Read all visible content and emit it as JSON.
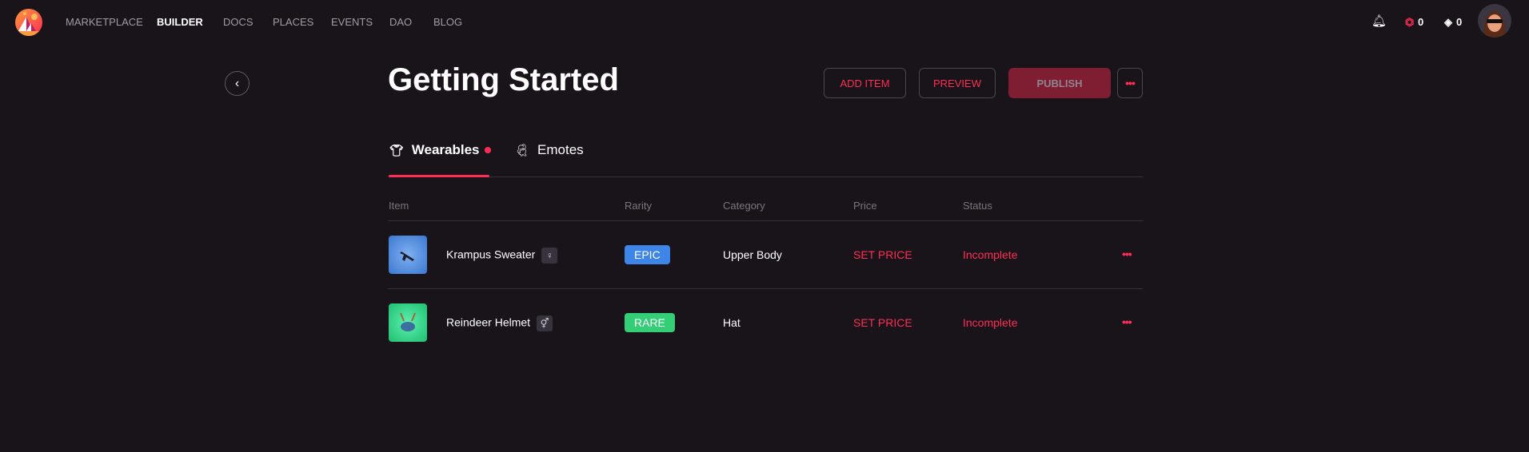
{
  "nav": {
    "items": [
      "MARKETPLACE",
      "BUILDER",
      "DOCS",
      "PLACES",
      "EVENTS",
      "DAO",
      "BLOG"
    ],
    "active": "BUILDER"
  },
  "account": {
    "mana_balance": "0",
    "diamond_balance": "0"
  },
  "header": {
    "title": "Getting Started",
    "add_item": "ADD ITEM",
    "preview": "PREVIEW",
    "publish": "PUBLISH",
    "more": "•••"
  },
  "tabs": [
    {
      "label": "Wearables",
      "icon": "shirt-icon",
      "active": true,
      "has_dot": true
    },
    {
      "label": "Emotes",
      "icon": "dance-icon",
      "active": false
    }
  ],
  "table": {
    "columns": [
      "Item",
      "Rarity",
      "Category",
      "Price",
      "Status"
    ],
    "rows": [
      {
        "name": "Krampus Sweater",
        "gender": "♀",
        "rarity": "EPIC",
        "rarity_color": "#3d85e6",
        "category": "Upper Body",
        "price": "SET PRICE",
        "status": "Incomplete",
        "more": "•••"
      },
      {
        "name": "Reindeer Helmet",
        "gender": "⚥",
        "rarity": "RARE",
        "rarity_color": "#34ce76",
        "category": "Hat",
        "price": "SET PRICE",
        "status": "Incomplete",
        "more": "•••"
      }
    ]
  },
  "colors": {
    "accent": "#ff2d55",
    "background": "#18141a"
  }
}
